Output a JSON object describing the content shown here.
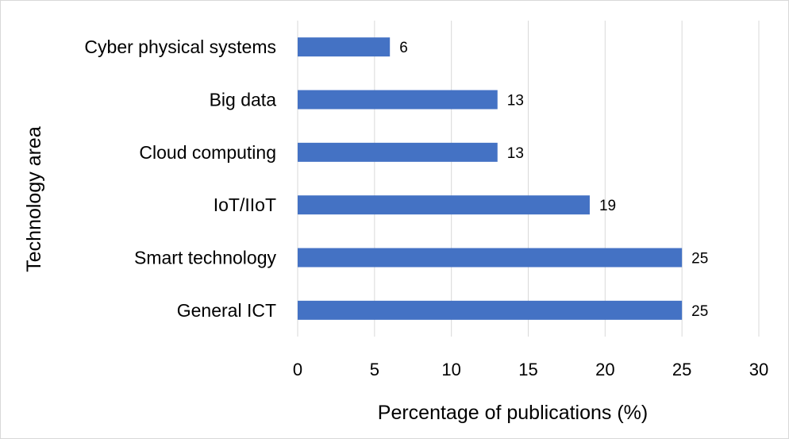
{
  "chart_data": {
    "type": "bar",
    "orientation": "horizontal",
    "categories": [
      "Cyber physical systems",
      "Big data",
      "Cloud computing",
      "IoT/IIoT",
      "Smart technology",
      "General ICT"
    ],
    "values": [
      6,
      13,
      13,
      19,
      25,
      25
    ],
    "xlabel": "Percentage of publications (%)",
    "ylabel": "Technology area",
    "xlim": [
      0,
      30
    ],
    "xticks": [
      0,
      5,
      10,
      15,
      20,
      25,
      30
    ],
    "grid": "vertical",
    "legend": "none",
    "bar_color": "#4472C4",
    "data_labels": true
  }
}
